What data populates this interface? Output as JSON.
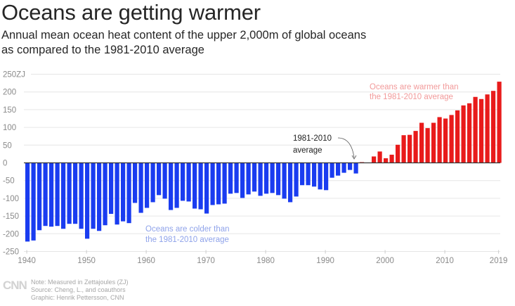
{
  "header": {
    "title": "Oceans are getting warmer",
    "subtitle_line1": "Annual mean ocean heat content of the upper 2,000m of global oceans",
    "subtitle_line2": "as compared to the 1981-2010 average"
  },
  "colors": {
    "negative": "#1a3cf0",
    "positive": "#e81b1b",
    "colder_text": "#8fa3ea",
    "warmer_text": "#f29a9a",
    "grid": "#e6e6e6",
    "zero_line": "#333333"
  },
  "chart_data": {
    "type": "bar",
    "title": "Oceans are getting warmer",
    "xlabel": "",
    "ylabel": "ZJ",
    "ylim": [
      -250,
      250
    ],
    "yticks": [
      250,
      200,
      150,
      100,
      50,
      0,
      -50,
      -100,
      -150,
      -200,
      -250
    ],
    "ytick_labels": [
      "250ZJ",
      "200",
      "150",
      "100",
      "50",
      "0",
      "-50",
      "-100",
      "-150",
      "-200",
      "-250"
    ],
    "xticks": [
      1940,
      1950,
      1960,
      1970,
      1980,
      1990,
      2000,
      2010,
      2019
    ],
    "xtick_labels": [
      "1940",
      "1950",
      "1960",
      "1970",
      "1980",
      "1990",
      "2000",
      "2010",
      "2019"
    ],
    "grid": true,
    "x": [
      1940,
      1941,
      1942,
      1943,
      1944,
      1945,
      1946,
      1947,
      1948,
      1949,
      1950,
      1951,
      1952,
      1953,
      1954,
      1955,
      1956,
      1957,
      1958,
      1959,
      1960,
      1961,
      1962,
      1963,
      1964,
      1965,
      1966,
      1967,
      1968,
      1969,
      1970,
      1971,
      1972,
      1973,
      1974,
      1975,
      1976,
      1977,
      1978,
      1979,
      1980,
      1981,
      1982,
      1983,
      1984,
      1985,
      1986,
      1987,
      1988,
      1989,
      1990,
      1991,
      1992,
      1993,
      1994,
      1995,
      1996,
      1997,
      1998,
      1999,
      2000,
      2001,
      2002,
      2003,
      2004,
      2005,
      2006,
      2007,
      2008,
      2009,
      2010,
      2011,
      2012,
      2013,
      2014,
      2015,
      2016,
      2017,
      2018,
      2019
    ],
    "values": [
      -222,
      -219,
      -190,
      -178,
      -180,
      -178,
      -186,
      -172,
      -172,
      -186,
      -214,
      -186,
      -192,
      -176,
      -144,
      -174,
      -165,
      -170,
      -113,
      -141,
      -127,
      -111,
      -91,
      -101,
      -133,
      -127,
      -107,
      -109,
      -129,
      -131,
      -143,
      -119,
      -117,
      -115,
      -87,
      -85,
      -99,
      -89,
      -81,
      -93,
      -87,
      -85,
      -91,
      -101,
      -111,
      -95,
      -63,
      -63,
      -67,
      -75,
      -77,
      -42,
      -36,
      -28,
      -20,
      -30,
      2,
      0,
      18,
      32,
      13,
      23,
      51,
      78,
      79,
      90,
      113,
      98,
      113,
      129,
      125,
      135,
      148,
      162,
      168,
      186,
      180,
      193,
      203,
      229
    ],
    "annotations": {
      "baseline_label_line1": "1981-2010",
      "baseline_label_line2": "average",
      "colder_line1": "Oceans are colder than",
      "colder_line2": "the 1981-2010 average",
      "warmer_line1": "Oceans are warmer than",
      "warmer_line2": "the 1981-2010 average"
    }
  },
  "footer": {
    "logo": "CNN",
    "note": "Note: Measured in Zettajoules (ZJ)",
    "source": "Source: Cheng, L., and coauthors",
    "graphic": "Graphic: Henrik Pettersson, CNN"
  }
}
